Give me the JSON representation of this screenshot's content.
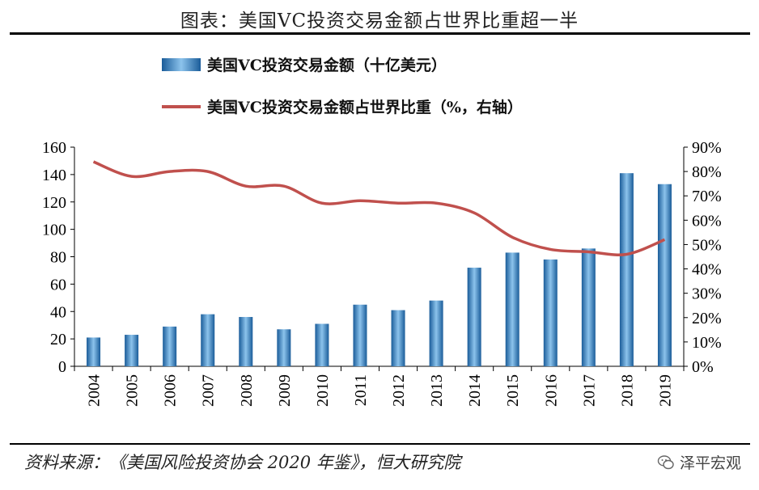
{
  "title": "图表：美国VC投资交易金额占世界比重超一半",
  "legend": {
    "bar_label": "美国VC投资交易金额（十亿美元）",
    "line_label": "美国VC投资交易金额占世界比重（%，右轴）"
  },
  "source": "资料来源：《美国风险投资协会 2020 年鉴》，恒大研究院",
  "brand": "泽平宏观",
  "chart_data": {
    "type": "bar",
    "categories": [
      "2004",
      "2005",
      "2006",
      "2007",
      "2008",
      "2009",
      "2010",
      "2011",
      "2012",
      "2013",
      "2014",
      "2015",
      "2016",
      "2017",
      "2018",
      "2019"
    ],
    "series": [
      {
        "name": "美国VC投资交易金额（十亿美元）",
        "type": "bar",
        "axis": "left",
        "values": [
          21,
          23,
          29,
          38,
          36,
          27,
          31,
          45,
          41,
          48,
          72,
          83,
          78,
          86,
          141,
          133
        ]
      },
      {
        "name": "美国VC投资交易金额占世界比重（%，右轴）",
        "type": "line",
        "axis": "right",
        "values": [
          84,
          78,
          80,
          80,
          74,
          74,
          67,
          68,
          67,
          67,
          63,
          53,
          48,
          47,
          46,
          52
        ]
      }
    ],
    "left_axis": {
      "ylim": [
        0,
        160
      ],
      "ticks": [
        "0",
        "20",
        "40",
        "60",
        "80",
        "100",
        "120",
        "140",
        "160"
      ]
    },
    "right_axis": {
      "ylim": [
        0,
        90
      ],
      "ticks": [
        "0%",
        "10%",
        "20%",
        "30%",
        "40%",
        "50%",
        "60%",
        "70%",
        "80%",
        "90%"
      ]
    },
    "grid": false,
    "legend_position": "top",
    "colors": {
      "bar": "#2e75b6",
      "line": "#c0504d"
    }
  }
}
